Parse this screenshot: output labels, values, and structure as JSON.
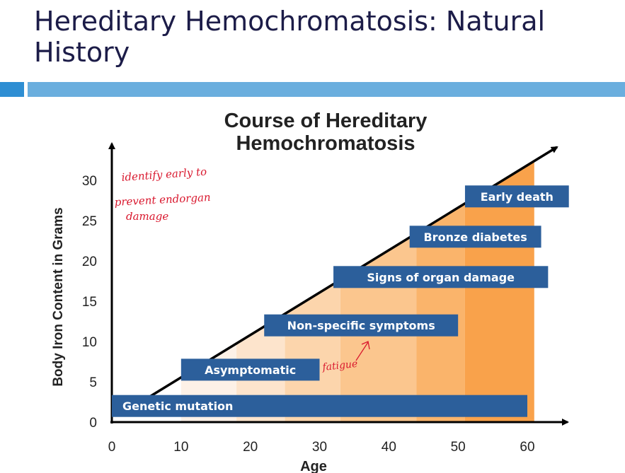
{
  "slide": {
    "title": "Hereditary Hemochromatosis: Natural History"
  },
  "diagram": {
    "title_line1": "Course of Hereditary",
    "title_line2": "Hemochromatosis",
    "y_axis_label": "Body Iron Content in Grams",
    "x_axis_label": "Age",
    "y_ticks": [
      "0",
      "5",
      "10",
      "15",
      "20",
      "25",
      "30"
    ],
    "x_ticks": [
      "0",
      "10",
      "20",
      "30",
      "40",
      "50",
      "60"
    ],
    "stages": [
      {
        "label": "Genetic mutation",
        "start_age": 0,
        "end_age": 60,
        "iron_g": 2
      },
      {
        "label": "Asymptomatic",
        "start_age": 10,
        "end_age": 30,
        "iron_g": 6.5
      },
      {
        "label": "Non-specific symptoms",
        "start_age": 22,
        "end_age": 50,
        "iron_g": 12
      },
      {
        "label": "Signs of organ damage",
        "start_age": 32,
        "end_age": 63,
        "iron_g": 18
      },
      {
        "label": "Bronze diabetes",
        "start_age": 43,
        "end_age": 62,
        "iron_g": 23
      },
      {
        "label": "Early death",
        "start_age": 51,
        "end_age": 66,
        "iron_g": 28
      }
    ],
    "colors": {
      "stage_box": "#2c5f9b",
      "gradient": [
        "#fdf1e7",
        "#fde4cc",
        "#fcd5ac",
        "#fbc68e",
        "#fab46b",
        "#f9a24b"
      ]
    }
  },
  "annotations": {
    "note_line1": "identify early to",
    "note_line2": "prevent endorgan",
    "note_line3": "damage",
    "fatigue": "fatigue"
  }
}
